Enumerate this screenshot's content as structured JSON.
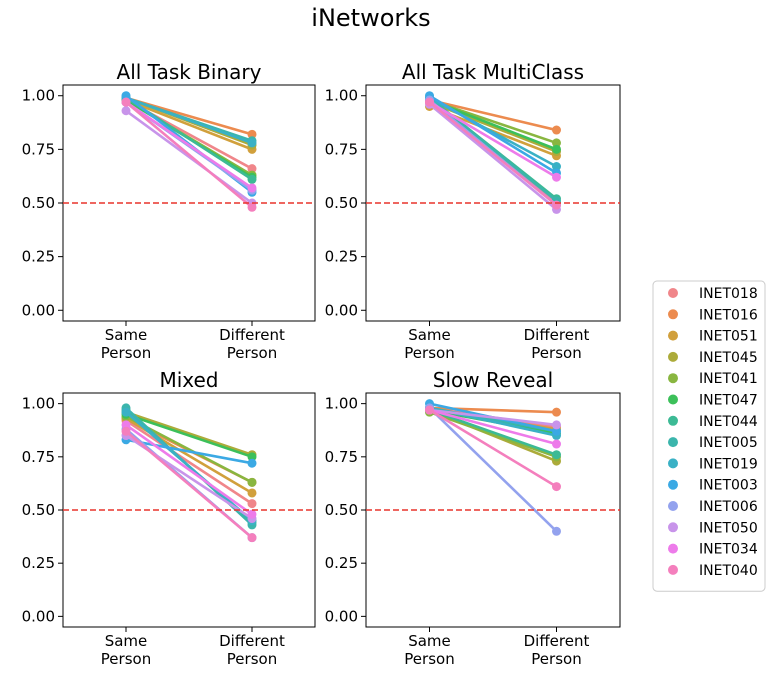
{
  "figure_title": "iNetworks",
  "chart_data": [
    {
      "type": "line",
      "title": "All Task Binary",
      "categories": [
        "Same\nPerson",
        "Different\nPerson"
      ],
      "ylim": [
        -0.05,
        1.05
      ],
      "yticks": [
        "0.00",
        "0.25",
        "0.50",
        "0.75",
        "1.00"
      ],
      "reference_line": 0.5,
      "series": [
        {
          "name": "INET018",
          "values": [
            0.98,
            0.66
          ]
        },
        {
          "name": "INET016",
          "values": [
            0.99,
            0.82
          ]
        },
        {
          "name": "INET051",
          "values": [
            0.98,
            0.75
          ]
        },
        {
          "name": "INET045",
          "values": [
            0.99,
            0.77
          ]
        },
        {
          "name": "INET041",
          "values": [
            0.98,
            0.63
          ]
        },
        {
          "name": "INET047",
          "values": [
            0.98,
            0.62
          ]
        },
        {
          "name": "INET044",
          "values": [
            0.99,
            0.61
          ]
        },
        {
          "name": "INET005",
          "values": [
            0.99,
            0.79
          ]
        },
        {
          "name": "INET019",
          "values": [
            0.99,
            0.78
          ]
        },
        {
          "name": "INET003",
          "values": [
            1.0,
            0.55
          ]
        },
        {
          "name": "INET006",
          "values": [
            0.97,
            0.56
          ]
        },
        {
          "name": "INET050",
          "values": [
            0.93,
            0.5
          ]
        },
        {
          "name": "INET034",
          "values": [
            0.97,
            0.57
          ]
        },
        {
          "name": "INET040",
          "values": [
            0.97,
            0.48
          ]
        }
      ]
    },
    {
      "type": "line",
      "title": "All Task MultiClass",
      "categories": [
        "Same\nPerson",
        "Different\nPerson"
      ],
      "ylim": [
        -0.05,
        1.05
      ],
      "yticks": [
        "0.00",
        "0.25",
        "0.50",
        "0.75",
        "1.00"
      ],
      "reference_line": 0.5,
      "series": [
        {
          "name": "INET018",
          "values": [
            0.97,
            0.5
          ]
        },
        {
          "name": "INET016",
          "values": [
            0.98,
            0.84
          ]
        },
        {
          "name": "INET051",
          "values": [
            0.95,
            0.72
          ]
        },
        {
          "name": "INET045",
          "values": [
            0.97,
            0.74
          ]
        },
        {
          "name": "INET041",
          "values": [
            0.98,
            0.78
          ]
        },
        {
          "name": "INET047",
          "values": [
            0.98,
            0.75
          ]
        },
        {
          "name": "INET044",
          "values": [
            0.99,
            0.52
          ]
        },
        {
          "name": "INET005",
          "values": [
            0.99,
            0.51
          ]
        },
        {
          "name": "INET019",
          "values": [
            0.99,
            0.67
          ]
        },
        {
          "name": "INET003",
          "values": [
            1.0,
            0.64
          ]
        },
        {
          "name": "INET006",
          "values": [
            0.98,
            0.49
          ]
        },
        {
          "name": "INET050",
          "values": [
            0.96,
            0.47
          ]
        },
        {
          "name": "INET034",
          "values": [
            0.97,
            0.62
          ]
        },
        {
          "name": "INET040",
          "values": [
            0.97,
            0.49
          ]
        }
      ]
    },
    {
      "type": "line",
      "title": "Mixed",
      "categories": [
        "Same\nPerson",
        "Different\nPerson"
      ],
      "ylim": [
        -0.05,
        1.05
      ],
      "yticks": [
        "0.00",
        "0.25",
        "0.50",
        "0.75",
        "1.00"
      ],
      "reference_line": 0.5,
      "series": [
        {
          "name": "INET018",
          "values": [
            0.92,
            0.53
          ]
        },
        {
          "name": "INET016",
          "values": [
            0.93,
            0.63
          ]
        },
        {
          "name": "INET051",
          "values": [
            0.93,
            0.58
          ]
        },
        {
          "name": "INET045",
          "values": [
            0.96,
            0.76
          ]
        },
        {
          "name": "INET041",
          "values": [
            0.94,
            0.63
          ]
        },
        {
          "name": "INET047",
          "values": [
            0.95,
            0.75
          ]
        },
        {
          "name": "INET044",
          "values": [
            0.97,
            0.44
          ]
        },
        {
          "name": "INET005",
          "values": [
            0.98,
            0.43
          ]
        },
        {
          "name": "INET019",
          "values": [
            0.96,
            0.45
          ]
        },
        {
          "name": "INET003",
          "values": [
            0.83,
            0.72
          ]
        },
        {
          "name": "INET006",
          "values": [
            0.88,
            0.37
          ]
        },
        {
          "name": "INET050",
          "values": [
            0.85,
            0.46
          ]
        },
        {
          "name": "INET034",
          "values": [
            0.9,
            0.48
          ]
        },
        {
          "name": "INET040",
          "values": [
            0.87,
            0.37
          ]
        }
      ]
    },
    {
      "type": "line",
      "title": "Slow Reveal",
      "categories": [
        "Same\nPerson",
        "Different\nPerson"
      ],
      "ylim": [
        -0.05,
        1.05
      ],
      "yticks": [
        "0.00",
        "0.25",
        "0.50",
        "0.75",
        "1.00"
      ],
      "reference_line": 0.5,
      "series": [
        {
          "name": "INET018",
          "values": [
            0.98,
            0.89
          ]
        },
        {
          "name": "INET016",
          "values": [
            0.98,
            0.96
          ]
        },
        {
          "name": "INET051",
          "values": [
            0.97,
            0.88
          ]
        },
        {
          "name": "INET045",
          "values": [
            0.97,
            0.73
          ]
        },
        {
          "name": "INET041",
          "values": [
            0.96,
            0.75
          ]
        },
        {
          "name": "INET047",
          "values": [
            0.97,
            0.86
          ]
        },
        {
          "name": "INET044",
          "values": [
            0.97,
            0.76
          ]
        },
        {
          "name": "INET005",
          "values": [
            0.98,
            0.87
          ]
        },
        {
          "name": "INET019",
          "values": [
            0.98,
            0.85
          ]
        },
        {
          "name": "INET003",
          "values": [
            1.0,
            0.87
          ]
        },
        {
          "name": "INET006",
          "values": [
            0.98,
            0.4
          ]
        },
        {
          "name": "INET050",
          "values": [
            0.97,
            0.9
          ]
        },
        {
          "name": "INET034",
          "values": [
            0.97,
            0.81
          ]
        },
        {
          "name": "INET040",
          "values": [
            0.97,
            0.61
          ]
        }
      ]
    }
  ],
  "legend": {
    "position": "right",
    "entries": [
      {
        "name": "INET018",
        "color": "#f0868a"
      },
      {
        "name": "INET016",
        "color": "#ec8b4f"
      },
      {
        "name": "INET051",
        "color": "#d1a03c"
      },
      {
        "name": "INET045",
        "color": "#acab3a"
      },
      {
        "name": "INET041",
        "color": "#89b640"
      },
      {
        "name": "INET047",
        "color": "#3cc05a"
      },
      {
        "name": "INET044",
        "color": "#3cba95"
      },
      {
        "name": "INET005",
        "color": "#3bb5ac"
      },
      {
        "name": "INET019",
        "color": "#3ab1c5"
      },
      {
        "name": "INET003",
        "color": "#3ba9e4"
      },
      {
        "name": "INET006",
        "color": "#93a2ee"
      },
      {
        "name": "INET050",
        "color": "#c894ea"
      },
      {
        "name": "INET034",
        "color": "#ed7bea"
      },
      {
        "name": "INET040",
        "color": "#f47fbd"
      }
    ]
  },
  "reference_line_color": "#e8342c"
}
